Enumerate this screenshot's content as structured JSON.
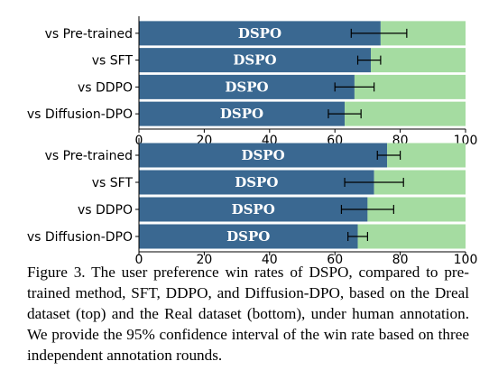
{
  "chart_data": [
    {
      "type": "bar",
      "orientation": "horizontal",
      "stacked": true,
      "categories": [
        "vs Pre-trained",
        "vs SFT",
        "vs DDPO",
        "vs Diffusion-DPO"
      ],
      "series": [
        {
          "name": "",
          "label": "DSPO",
          "color": "#3a6891",
          "values": [
            74,
            71,
            66,
            63
          ]
        },
        {
          "name": "",
          "color": "#a5dca1",
          "values": [
            26,
            29,
            34,
            37
          ]
        }
      ],
      "error": [
        [
          65,
          82
        ],
        [
          67,
          74
        ],
        [
          60,
          72
        ],
        [
          58,
          68
        ]
      ],
      "xticks": [
        0,
        20,
        40,
        60,
        80,
        100
      ],
      "xlim": [
        0,
        100
      ],
      "title": "",
      "xlabel": "",
      "ylabel": ""
    },
    {
      "type": "bar",
      "orientation": "horizontal",
      "stacked": true,
      "categories": [
        "vs Pre-trained",
        "vs SFT",
        "vs DDPO",
        "vs Diffusion-DPO"
      ],
      "series": [
        {
          "name": "",
          "label": "DSPO",
          "color": "#3a6891",
          "values": [
            76,
            72,
            70,
            67
          ]
        },
        {
          "name": "",
          "color": "#a5dca1",
          "values": [
            24,
            28,
            30,
            33
          ]
        }
      ],
      "error": [
        [
          73,
          80
        ],
        [
          63,
          81
        ],
        [
          62,
          78
        ],
        [
          64,
          70
        ]
      ],
      "xticks": [
        0,
        20,
        40,
        60,
        80,
        100
      ],
      "xlim": [
        0,
        100
      ],
      "title": "",
      "xlabel": "",
      "ylabel": ""
    }
  ],
  "caption": "Figure 3. The user preference win rates of DSPO, compared to pre-trained method, SFT, DDPO, and Diffusion-DPO, based on the Dreal dataset (top) and the Real dataset (bottom), under human annotation. We provide the 95% confidence interval of the win rate based on three independent annotation rounds."
}
